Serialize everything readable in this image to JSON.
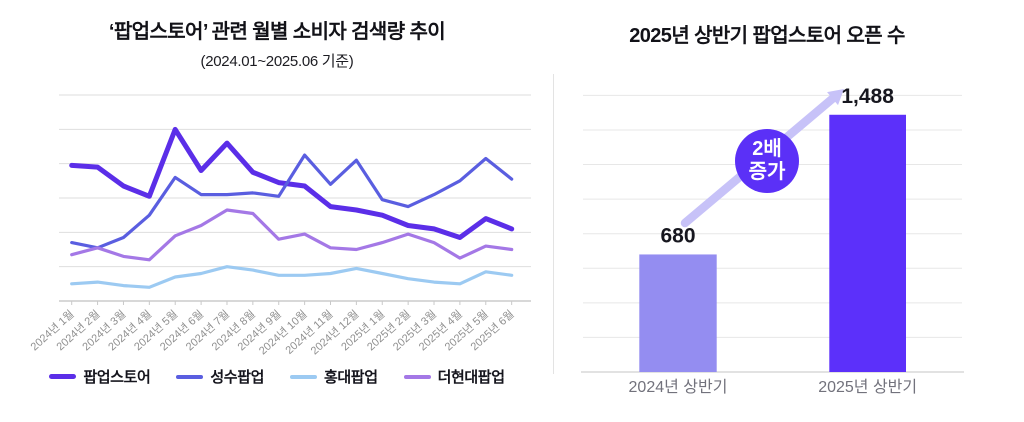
{
  "colors": {
    "grid": "#dedede",
    "axis": "#cccccc",
    "tick": "#c9c9c9",
    "tick_label": "#8f8f8f",
    "category_label": "#72727c",
    "value_label": "#17171f",
    "divider": "#e3e3e3",
    "title": "#121218"
  },
  "chart_data": [
    {
      "type": "line",
      "title": "‘팝업스토어’ 관련 월별 소비자 검색량 추이",
      "subtitle": "(2024.01~2025.06 기준)",
      "x_labels": [
        "2024년 1월",
        "2024년 2월",
        "2024년 3월",
        "2024년 4월",
        "2024년 5월",
        "2024년 6월",
        "2024년 7월",
        "2024년 8월",
        "2024년 9월",
        "2024년 10월",
        "2024년 11월",
        "2024년 12월",
        "2025년 1월",
        "2025년 2월",
        "2025년 3월",
        "2025년 4월",
        "2025년 5월",
        "2025년 6월"
      ],
      "ylim": [
        0,
        120
      ],
      "y_grid_step": 20,
      "grid": true,
      "y_tick_labels_visible": false,
      "legend_position": "bottom",
      "series": [
        {
          "name": "팝업스토어",
          "color": "#5b2ee8",
          "stroke_width": 5,
          "values": [
            79,
            78,
            67,
            61,
            100,
            76,
            92,
            75,
            69,
            67,
            55,
            53,
            50,
            44,
            42,
            37,
            48,
            42
          ]
        },
        {
          "name": "성수팝업",
          "color": "#5a5ee0",
          "stroke_width": 3.2,
          "values": [
            34,
            31,
            37,
            50,
            72,
            62,
            62,
            63,
            61,
            85,
            68,
            82,
            59,
            55,
            62,
            70,
            83,
            71
          ]
        },
        {
          "name": "홍대팝업",
          "color": "#9ccaf2",
          "stroke_width": 3.2,
          "values": [
            10,
            11,
            9,
            8,
            14,
            16,
            20,
            18,
            15,
            15,
            16,
            19,
            16,
            13,
            11,
            10,
            17,
            15
          ]
        },
        {
          "name": "더현대팝업",
          "color": "#a478e6",
          "stroke_width": 3.2,
          "values": [
            27,
            31,
            26,
            24,
            38,
            44,
            53,
            51,
            36,
            39,
            31,
            30,
            34,
            39,
            34,
            25,
            32,
            30
          ]
        }
      ]
    },
    {
      "type": "bar",
      "title": "2025년 상반기 팝업스토어 오픈 수",
      "categories": [
        "2024년 상반기",
        "2025년 상반기"
      ],
      "values": [
        680,
        1488
      ],
      "value_labels": [
        "680",
        "1,488"
      ],
      "bar_colors": [
        "#948df1",
        "#5c30fa"
      ],
      "ylim": [
        0,
        1600
      ],
      "y_grid_step": 200,
      "grid": true,
      "y_tick_labels_visible": false,
      "annotation": {
        "badge_line1": "2배",
        "badge_line2": "증가",
        "badge_color": "#5b30f7",
        "badge_text_color": "#ffffff",
        "arrow_color": "#c7c2f8"
      }
    }
  ]
}
